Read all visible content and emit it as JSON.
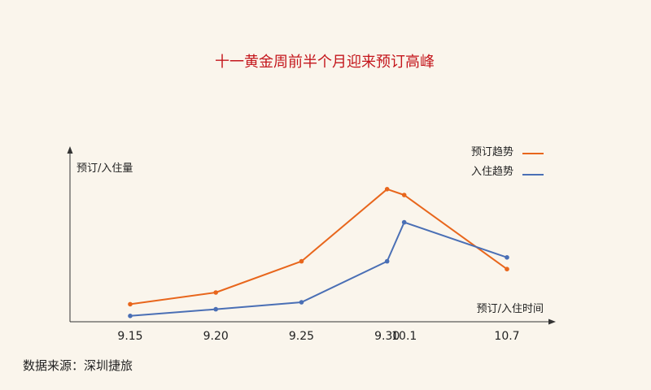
{
  "chart_data": {
    "type": "line",
    "title": "十一黄金周前半个月迎来预订高峰",
    "ylabel": "预订/入住量",
    "xlabel": "预订/入住时间",
    "categories": [
      "9.15",
      "9.20",
      "9.25",
      "9.30",
      "10.1",
      "10.7"
    ],
    "x_days": [
      0,
      5,
      10,
      15,
      16,
      22
    ],
    "series": [
      {
        "name": "预订趋势",
        "color": "#e8661c",
        "values": [
          0.45,
          0.75,
          1.55,
          3.4,
          3.25,
          1.35
        ]
      },
      {
        "name": "入住趋势",
        "color": "#4a6fb5",
        "values": [
          0.15,
          0.32,
          0.5,
          1.55,
          2.55,
          1.65
        ]
      }
    ],
    "ylim": [
      0,
      4.5
    ],
    "grid": false,
    "legend_position": "top-right"
  },
  "source": "数据来源：深圳捷旅"
}
